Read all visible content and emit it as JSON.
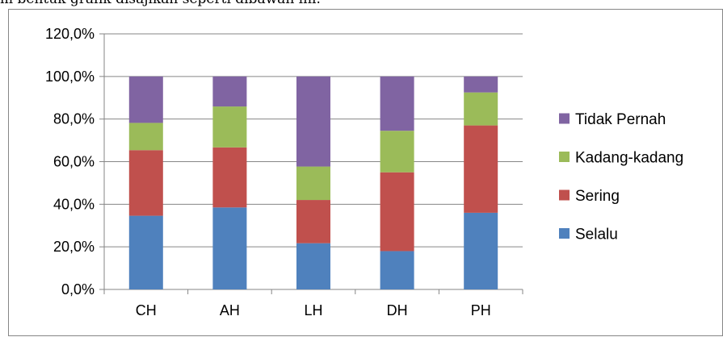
{
  "caption": "m bentuk grafik disajikan seperti dibawah ini.",
  "chart_data": {
    "type": "bar",
    "stacked": true,
    "categories": [
      "CH",
      "AH",
      "LH",
      "DH",
      "PH"
    ],
    "series": [
      {
        "name": "Selalu",
        "color": "#4f81bd",
        "values": [
          34.6,
          38.5,
          21.7,
          18.0,
          36.0
        ]
      },
      {
        "name": "Sering",
        "color": "#c0504d",
        "values": [
          30.8,
          28.2,
          20.3,
          37.0,
          41.0
        ]
      },
      {
        "name": "Kadang-kadang",
        "color": "#9bbb59",
        "values": [
          12.8,
          19.2,
          15.7,
          19.5,
          15.5
        ]
      },
      {
        "name": "Tidak Pernah",
        "color": "#8064a2",
        "values": [
          21.8,
          14.1,
          42.3,
          25.5,
          7.5
        ]
      }
    ],
    "yticks": [
      "0,0%",
      "20,0%",
      "40,0%",
      "60,0%",
      "80,0%",
      "100,0%",
      "120,0%"
    ],
    "ylim": [
      0,
      120
    ],
    "title": "",
    "xlabel": "",
    "ylabel": "",
    "grid": true,
    "legend_position": "right"
  }
}
